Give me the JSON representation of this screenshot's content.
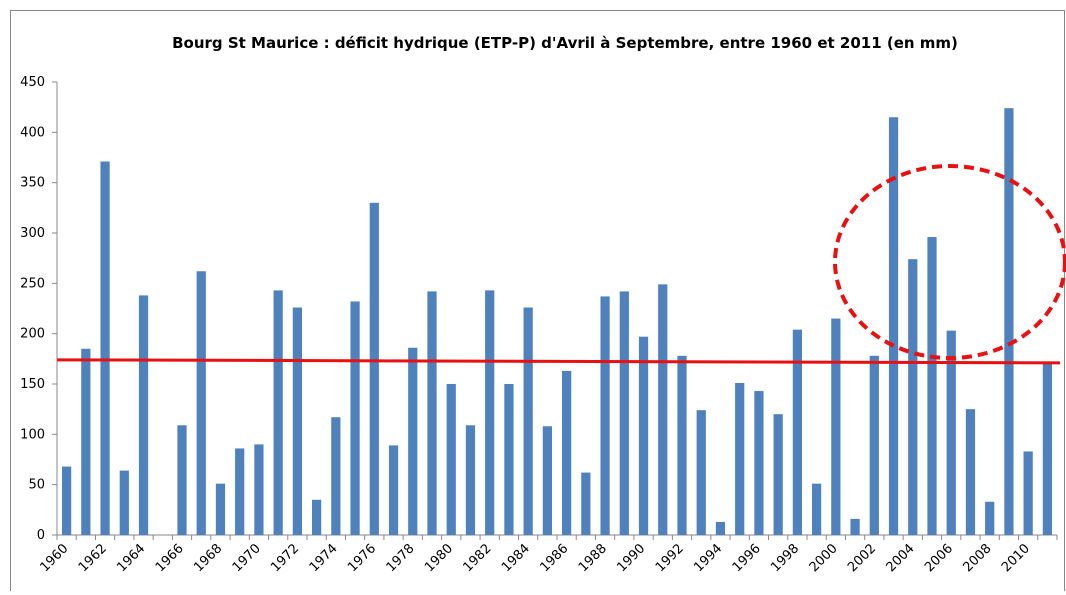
{
  "chart_data": {
    "type": "bar",
    "title": "Bourg St Maurice : déficit hydrique (ETP-P) d'Avril à Septembre, entre 1960 et 2011 (en mm)",
    "categories": [
      "1960",
      null,
      "1962",
      null,
      "1964",
      null,
      "1966",
      null,
      "1968",
      null,
      "1970",
      null,
      "1972",
      null,
      "1974",
      null,
      "1976",
      null,
      "1978",
      null,
      "1980",
      null,
      "1982",
      null,
      "1984",
      null,
      "1986",
      null,
      "1988",
      null,
      "1990",
      null,
      "1992",
      null,
      "1994",
      null,
      "1996",
      null,
      "1998",
      null,
      "2000",
      null,
      "2002",
      null,
      "2004",
      null,
      "2006",
      null,
      "2008",
      null,
      "2010",
      null
    ],
    "values": [
      68,
      185,
      371,
      64,
      238,
      null,
      109,
      262,
      51,
      86,
      90,
      243,
      226,
      35,
      117,
      232,
      330,
      89,
      186,
      242,
      150,
      109,
      243,
      150,
      226,
      108,
      163,
      62,
      237,
      242,
      197,
      249,
      178,
      124,
      13,
      151,
      143,
      120,
      204,
      51,
      215,
      16,
      178,
      415,
      274,
      296,
      203,
      125,
      33,
      424,
      83,
      170
    ],
    "color": "#4f81bd",
    "trend_line": {
      "color": "#e81010",
      "values": [
        174,
        171
      ]
    },
    "ylim": [
      0,
      450
    ],
    "yticks": [
      0,
      50,
      100,
      150,
      200,
      250,
      300,
      350,
      400,
      450
    ],
    "grid": false
  }
}
